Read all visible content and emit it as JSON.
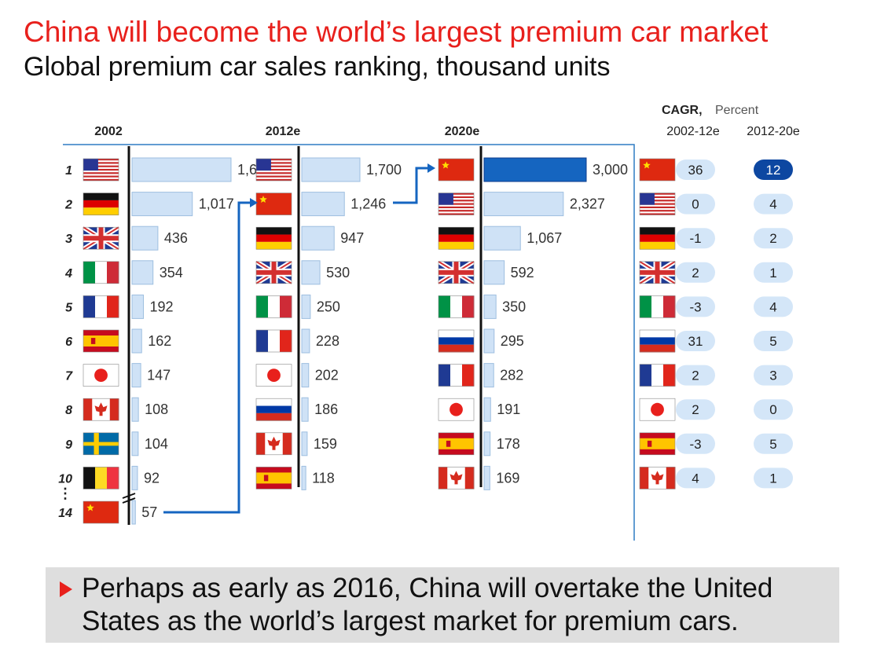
{
  "title": "China will become the world’s largest premium car market",
  "subtitle": "Global premium car sales ranking, thousand units",
  "note": "Perhaps as early as 2016, China will overtake the United States as the world’s largest market for premium cars.",
  "colors": {
    "title": "#e8201c",
    "bar_light": "#cfe2f6",
    "bar_highlight": "#1565c0",
    "connector": "#1565c0",
    "pill_light": "#d4e6f8",
    "pill_highlight": "#0d47a1"
  },
  "chart_data": {
    "type": "bar",
    "orientation": "horizontal",
    "title": "China will become the world’s largest premium car market",
    "subtitle": "Global premium car sales ranking, thousand units",
    "panels": [
      {
        "header": "2002",
        "ranks": [
          "1",
          "2",
          "3",
          "4",
          "5",
          "6",
          "7",
          "8",
          "9",
          "10",
          "14"
        ],
        "flags": [
          "us",
          "de",
          "gb",
          "it",
          "fr",
          "es",
          "jp",
          "ca",
          "se",
          "be",
          "cn"
        ],
        "values": [
          1670,
          1017,
          436,
          354,
          192,
          162,
          147,
          108,
          104,
          92,
          57
        ],
        "labels": [
          "1,670",
          "1,017",
          "436",
          "354",
          "192",
          "162",
          "147",
          "108",
          "104",
          "92",
          "57"
        ],
        "ellipsis": "⋮"
      },
      {
        "header": "2012e",
        "flags": [
          "us",
          "cn",
          "de",
          "gb",
          "it",
          "fr",
          "jp",
          "ru",
          "ca",
          "es"
        ],
        "values": [
          1700,
          1246,
          947,
          530,
          250,
          228,
          202,
          186,
          159,
          118
        ],
        "labels": [
          "1,700",
          "1,246",
          "947",
          "530",
          "250",
          "228",
          "202",
          "186",
          "159",
          "118"
        ]
      },
      {
        "header": "2020e",
        "flags": [
          "cn",
          "us",
          "de",
          "gb",
          "it",
          "ru",
          "fr",
          "jp",
          "es",
          "ca"
        ],
        "values": [
          3000,
          2327,
          1067,
          592,
          350,
          295,
          282,
          191,
          178,
          169
        ],
        "labels": [
          "3,000",
          "2,327",
          "1,067",
          "592",
          "350",
          "295",
          "282",
          "191",
          "178",
          "169"
        ],
        "highlight_index": 0
      }
    ],
    "cagr": {
      "title": "CAGR,",
      "unit": "Percent",
      "col1_header": "2002-12e",
      "col2_header": "2012-20e",
      "flags": [
        "cn",
        "us",
        "de",
        "gb",
        "it",
        "ru",
        "fr",
        "jp",
        "es",
        "ca"
      ],
      "col1_values": [
        "36",
        "0",
        "-1",
        "2",
        "-3",
        "31",
        "2",
        "2",
        "-3",
        "4"
      ],
      "col2_values": [
        "12",
        "4",
        "2",
        "1",
        "4",
        "5",
        "3",
        "0",
        "5",
        "1"
      ],
      "highlight_index": 0
    }
  }
}
